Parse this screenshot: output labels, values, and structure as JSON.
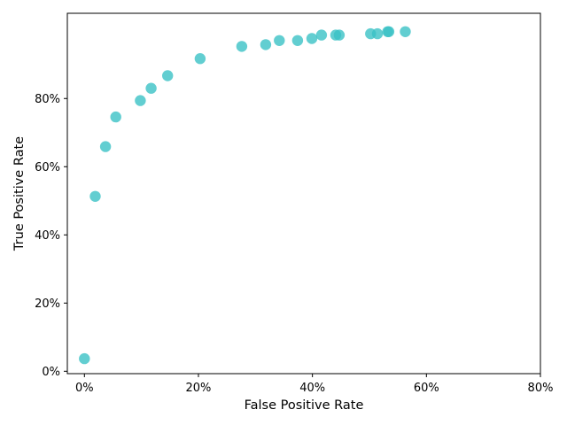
{
  "chart_data": {
    "type": "scatter",
    "xlabel": "False Positive Rate",
    "ylabel": "True Positive Rate",
    "xlim": [
      -0.03,
      0.8
    ],
    "ylim": [
      -0.007,
      1.05
    ],
    "x_ticks": [
      {
        "value": 0.0,
        "label": "0%"
      },
      {
        "value": 0.2,
        "label": "20%"
      },
      {
        "value": 0.4,
        "label": "40%"
      },
      {
        "value": 0.6,
        "label": "60%"
      },
      {
        "value": 0.8,
        "label": "80%"
      }
    ],
    "y_ticks": [
      {
        "value": 0.0,
        "label": "0%"
      },
      {
        "value": 0.2,
        "label": "20%"
      },
      {
        "value": 0.4,
        "label": "40%"
      },
      {
        "value": 0.6,
        "label": "60%"
      },
      {
        "value": 0.8,
        "label": "80%"
      }
    ],
    "grid": false,
    "color": "#3bc2c6",
    "points": [
      {
        "x": 0.0,
        "y": 0.037
      },
      {
        "x": 0.019,
        "y": 0.513
      },
      {
        "x": 0.037,
        "y": 0.659
      },
      {
        "x": 0.055,
        "y": 0.746
      },
      {
        "x": 0.098,
        "y": 0.794
      },
      {
        "x": 0.117,
        "y": 0.83
      },
      {
        "x": 0.146,
        "y": 0.867
      },
      {
        "x": 0.203,
        "y": 0.917
      },
      {
        "x": 0.276,
        "y": 0.953
      },
      {
        "x": 0.318,
        "y": 0.958
      },
      {
        "x": 0.342,
        "y": 0.97
      },
      {
        "x": 0.374,
        "y": 0.97
      },
      {
        "x": 0.399,
        "y": 0.976
      },
      {
        "x": 0.416,
        "y": 0.986
      },
      {
        "x": 0.441,
        "y": 0.986
      },
      {
        "x": 0.447,
        "y": 0.986
      },
      {
        "x": 0.502,
        "y": 0.99
      },
      {
        "x": 0.514,
        "y": 0.99
      },
      {
        "x": 0.532,
        "y": 0.996
      },
      {
        "x": 0.534,
        "y": 0.996
      },
      {
        "x": 0.563,
        "y": 0.996
      }
    ]
  }
}
